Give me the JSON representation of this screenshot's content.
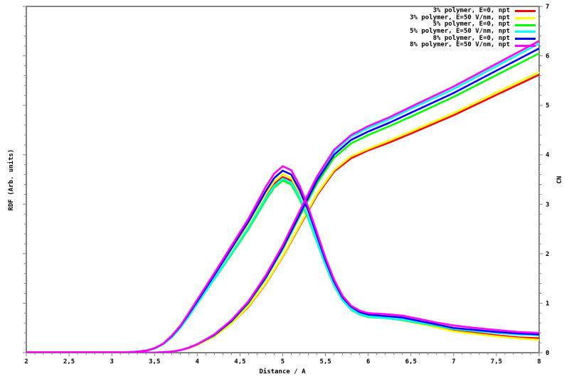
{
  "figure": {
    "background": "#ffffff",
    "axis_color": "#848484",
    "text_color": "#000000",
    "decimal_separator": ","
  },
  "legend": {
    "position": "top-right-inside",
    "entries": [
      {
        "label": "3% polymer, E=0, npt",
        "color": "#ff0000"
      },
      {
        "label": "3% polymer, E=50 V/nm, npt",
        "color": "#ffff00"
      },
      {
        "label": "5% polymer, E=0, npt",
        "color": "#00ff00"
      },
      {
        "label": "5% polymer, E=50 V/nm, npt",
        "color": "#00ffff"
      },
      {
        "label": "8% polymer, E=0, npt",
        "color": "#0000ff"
      },
      {
        "label": "8% polymer, E=50 V/nm, npt",
        "color": "#ff00ff"
      }
    ]
  },
  "chart_data": {
    "type": "line",
    "title": "",
    "xlabel": "Distance / A",
    "ylabel_left": "RDF (Arb. units)",
    "ylabel_right": "CN",
    "xlim": [
      2,
      8
    ],
    "x_major_step": 0.5,
    "x_minor_step": 0.1,
    "ylim_right": [
      0,
      7
    ],
    "y_major_step": 1,
    "y_minor_step": 0.2,
    "y_left_tick_labels_shown": false,
    "grid": false,
    "rdf_units_note": "RDF axis is unlabeled arbitrary units; RDF values below are given on the 0-7 right-axis scale as drawn. Each system has two curves: a bell-shaped RDF peaking near x=5.0 and a monotonically rising CN reaching ~5.6-6.3 at x=8.",
    "rdf_x": [
      2.0,
      2.5,
      3.0,
      3.2,
      3.3,
      3.4,
      3.5,
      3.6,
      3.7,
      3.8,
      3.9,
      4.0,
      4.2,
      4.4,
      4.6,
      4.8,
      4.9,
      5.0,
      5.1,
      5.2,
      5.3,
      5.4,
      5.5,
      5.6,
      5.7,
      5.8,
      5.9,
      6.0,
      6.2,
      6.4,
      6.6,
      6.8,
      7.0,
      7.25,
      7.5,
      7.75,
      8.0
    ],
    "cn_x": [
      2.0,
      3.0,
      3.5,
      3.6,
      3.7,
      3.8,
      3.9,
      4.0,
      4.2,
      4.4,
      4.6,
      4.8,
      5.0,
      5.2,
      5.4,
      5.6,
      5.8,
      6.0,
      6.25,
      6.5,
      7.0,
      7.5,
      8.0
    ],
    "series": [
      {
        "name": "3% polymer, E=0, npt",
        "color": "#ff0000",
        "rdf": [
          0.01,
          0.01,
          0.01,
          0.01,
          0.02,
          0.04,
          0.09,
          0.17,
          0.32,
          0.51,
          0.75,
          1.01,
          1.52,
          2.04,
          2.55,
          3.15,
          3.41,
          3.55,
          3.48,
          3.17,
          2.76,
          2.28,
          1.8,
          1.39,
          1.08,
          0.89,
          0.79,
          0.73,
          0.7,
          0.66,
          0.59,
          0.52,
          0.45,
          0.4,
          0.35,
          0.31,
          0.29
        ],
        "cn": [
          0,
          0,
          0,
          0.01,
          0.02,
          0.05,
          0.09,
          0.16,
          0.33,
          0.59,
          0.93,
          1.39,
          1.94,
          2.56,
          3.18,
          3.66,
          3.93,
          4.09,
          4.25,
          4.43,
          4.8,
          5.21,
          5.62
        ]
      },
      {
        "name": "3% polymer, E=50 V/nm, npt",
        "color": "#ffff00",
        "rdf": [
          0.01,
          0.01,
          0.01,
          0.01,
          0.02,
          0.04,
          0.09,
          0.18,
          0.32,
          0.52,
          0.76,
          1.02,
          1.54,
          2.07,
          2.59,
          3.2,
          3.46,
          3.61,
          3.53,
          3.22,
          2.81,
          2.32,
          1.83,
          1.41,
          1.1,
          0.91,
          0.8,
          0.74,
          0.7,
          0.66,
          0.59,
          0.51,
          0.43,
          0.38,
          0.33,
          0.29,
          0.26
        ],
        "cn": [
          0,
          0,
          0,
          0.01,
          0.02,
          0.05,
          0.09,
          0.16,
          0.33,
          0.59,
          0.94,
          1.4,
          1.95,
          2.58,
          3.21,
          3.69,
          3.97,
          4.12,
          4.29,
          4.47,
          4.84,
          5.26,
          5.67
        ]
      },
      {
        "name": "5% polymer, E=0, npt",
        "color": "#00ff00",
        "rdf": [
          0.01,
          0.01,
          0.01,
          0.01,
          0.02,
          0.04,
          0.08,
          0.17,
          0.31,
          0.5,
          0.73,
          0.99,
          1.49,
          1.99,
          2.5,
          3.08,
          3.34,
          3.48,
          3.4,
          3.1,
          2.71,
          2.24,
          1.77,
          1.36,
          1.06,
          0.87,
          0.77,
          0.72,
          0.7,
          0.66,
          0.6,
          0.54,
          0.48,
          0.44,
          0.4,
          0.37,
          0.35
        ],
        "cn": [
          0,
          0,
          0,
          0.01,
          0.02,
          0.05,
          0.1,
          0.17,
          0.35,
          0.63,
          1.0,
          1.5,
          2.09,
          2.76,
          3.42,
          3.94,
          4.23,
          4.4,
          4.58,
          4.77,
          5.17,
          5.61,
          6.05
        ]
      },
      {
        "name": "5% polymer, E=50 V/nm, npt",
        "color": "#00ffff",
        "rdf": [
          0.01,
          0.01,
          0.01,
          0.01,
          0.02,
          0.04,
          0.09,
          0.17,
          0.31,
          0.5,
          0.74,
          1.0,
          1.5,
          2.01,
          2.53,
          3.12,
          3.37,
          3.52,
          3.44,
          3.14,
          2.74,
          2.26,
          1.79,
          1.38,
          1.07,
          0.88,
          0.78,
          0.73,
          0.7,
          0.67,
          0.61,
          0.55,
          0.48,
          0.44,
          0.4,
          0.37,
          0.36
        ],
        "cn": [
          0,
          0,
          0,
          0.01,
          0.02,
          0.05,
          0.1,
          0.17,
          0.37,
          0.65,
          1.04,
          1.54,
          2.15,
          2.84,
          3.54,
          4.06,
          4.37,
          4.54,
          4.72,
          4.93,
          5.33,
          5.79,
          6.25
        ]
      },
      {
        "name": "8% polymer, E=0, npt",
        "color": "#0000ff",
        "rdf": [
          0.01,
          0.01,
          0.01,
          0.01,
          0.02,
          0.04,
          0.09,
          0.18,
          0.33,
          0.53,
          0.78,
          1.04,
          1.57,
          2.11,
          2.65,
          3.26,
          3.53,
          3.68,
          3.6,
          3.28,
          2.87,
          2.37,
          1.87,
          1.44,
          1.12,
          0.93,
          0.82,
          0.77,
          0.74,
          0.71,
          0.64,
          0.57,
          0.5,
          0.46,
          0.42,
          0.39,
          0.37
        ],
        "cn": [
          0,
          0,
          0,
          0.01,
          0.02,
          0.05,
          0.1,
          0.17,
          0.36,
          0.64,
          1.02,
          1.52,
          2.12,
          2.8,
          3.48,
          4.0,
          4.3,
          4.47,
          4.65,
          4.85,
          5.25,
          5.7,
          6.15
        ]
      },
      {
        "name": "8% polymer, E=50 V/nm, npt",
        "color": "#ff00ff",
        "rdf": [
          0.01,
          0.01,
          0.01,
          0.01,
          0.02,
          0.04,
          0.09,
          0.18,
          0.34,
          0.54,
          0.8,
          1.07,
          1.61,
          2.16,
          2.71,
          3.35,
          3.62,
          3.77,
          3.69,
          3.37,
          2.94,
          2.43,
          1.92,
          1.48,
          1.15,
          0.95,
          0.85,
          0.8,
          0.78,
          0.75,
          0.68,
          0.61,
          0.55,
          0.5,
          0.46,
          0.42,
          0.4
        ],
        "cn": [
          0,
          0,
          0,
          0.01,
          0.02,
          0.05,
          0.1,
          0.17,
          0.37,
          0.66,
          1.04,
          1.56,
          2.17,
          2.87,
          3.56,
          4.1,
          4.4,
          4.58,
          4.76,
          4.97,
          5.38,
          5.84,
          6.3
        ]
      }
    ]
  }
}
